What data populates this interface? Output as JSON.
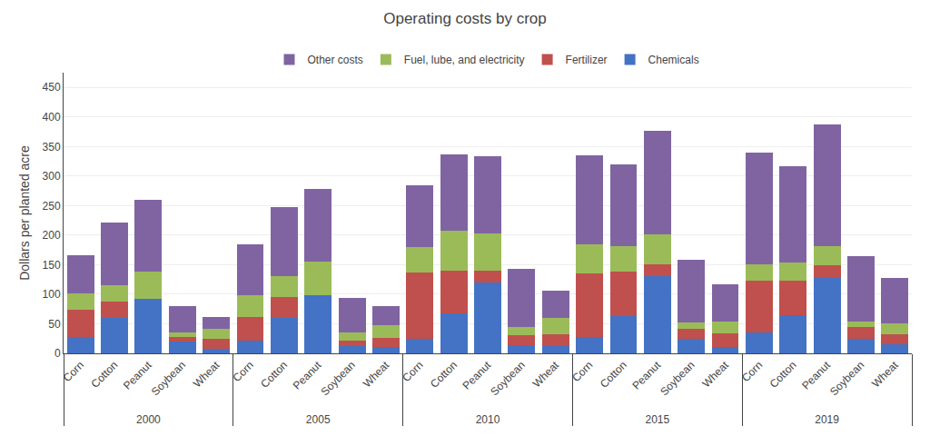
{
  "chart_data": {
    "type": "bar",
    "title": "Operating costs by crop",
    "ylabel": "Dollars per planted acre",
    "stacked": true,
    "grid": true,
    "legend": "top",
    "groups": [
      2000,
      2000,
      2000,
      2000,
      2000,
      2005,
      2005,
      2005,
      2005,
      2005,
      2010,
      2010,
      2010,
      2010,
      2010,
      2015,
      2015,
      2015,
      2015,
      2015,
      2019,
      2019,
      2019,
      2019,
      2019
    ],
    "categories": [
      "Corn",
      "Cotton",
      "Peanut",
      "Soybean",
      "Wheat",
      "Corn",
      "Cotton",
      "Peanut",
      "Soybean",
      "Wheat",
      "Corn",
      "Cotton",
      "Peanut",
      "Soybean",
      "Wheat",
      "Corn",
      "Cotton",
      "Peanut",
      "Soybean",
      "Wheat",
      "Corn",
      "Cotton",
      "Peanut",
      "Soybean",
      "Wheat"
    ],
    "series": [
      {
        "name": "Chemicals",
        "color": "#4472C4",
        "values": [
          27,
          60,
          93,
          20,
          7,
          22,
          60,
          98,
          12,
          10,
          25,
          68,
          120,
          14,
          13,
          27,
          63,
          130,
          24,
          11,
          35,
          65,
          127,
          24,
          15
        ]
      },
      {
        "name": "Fertilizer",
        "color": "#C0504D",
        "values": [
          47,
          28,
          0,
          8,
          17,
          40,
          35,
          0,
          10,
          16,
          112,
          72,
          20,
          17,
          20,
          108,
          75,
          20,
          18,
          23,
          88,
          58,
          22,
          20,
          18
        ]
      },
      {
        "name": "Fuel, lube, and electricity",
        "color": "#9BBB59",
        "values": [
          27,
          28,
          45,
          8,
          17,
          37,
          35,
          58,
          14,
          22,
          43,
          68,
          63,
          14,
          27,
          50,
          43,
          52,
          11,
          20,
          27,
          30,
          33,
          10,
          17
        ]
      },
      {
        "name": "Other costs",
        "color": "#8064A2",
        "values": [
          65,
          105,
          122,
          44,
          20,
          85,
          118,
          122,
          58,
          32,
          105,
          128,
          130,
          98,
          46,
          150,
          138,
          175,
          105,
          63,
          190,
          163,
          205,
          110,
          77
        ]
      }
    ],
    "ylim": [
      0,
      475
    ],
    "yticks": [
      0,
      50,
      100,
      150,
      200,
      250,
      300,
      350,
      400,
      450
    ]
  }
}
